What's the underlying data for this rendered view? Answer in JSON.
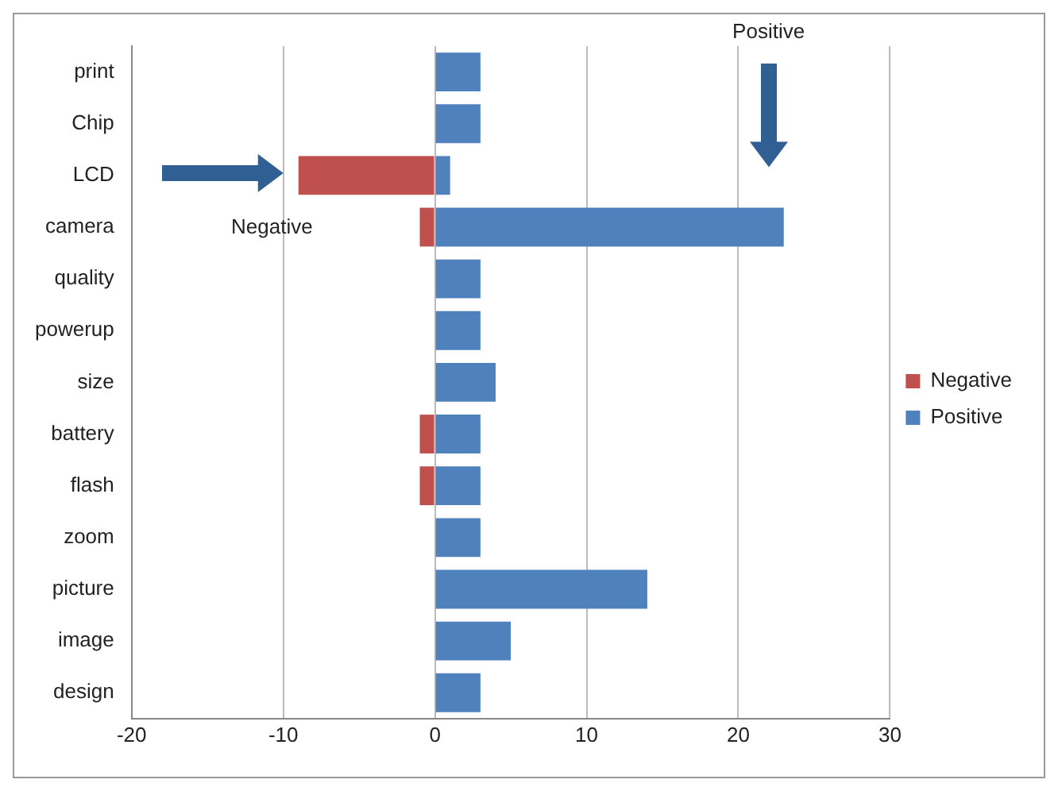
{
  "chart_data": {
    "type": "bar",
    "orientation": "horizontal",
    "stacked": true,
    "categories": [
      "print",
      "Chip",
      "LCD",
      "camera",
      "quality",
      "powerup",
      "size",
      "battery",
      "flash",
      "zoom",
      "picture",
      "image",
      "design"
    ],
    "series": [
      {
        "name": "Negative",
        "color": "#c0504d",
        "values": [
          null,
          null,
          -9,
          -1,
          null,
          null,
          null,
          -1,
          -1,
          null,
          null,
          null,
          null
        ]
      },
      {
        "name": "Positive",
        "color": "#4f81bd",
        "values": [
          3,
          3,
          1,
          23,
          3,
          3,
          4,
          3,
          3,
          3,
          14,
          5,
          3
        ]
      }
    ],
    "xlim": [
      -20,
      30
    ],
    "xticks": [
      -20,
      -10,
      0,
      10,
      20,
      30
    ],
    "grid": "x",
    "legend": "right",
    "annotations": [
      "Negative",
      "Positive"
    ]
  }
}
